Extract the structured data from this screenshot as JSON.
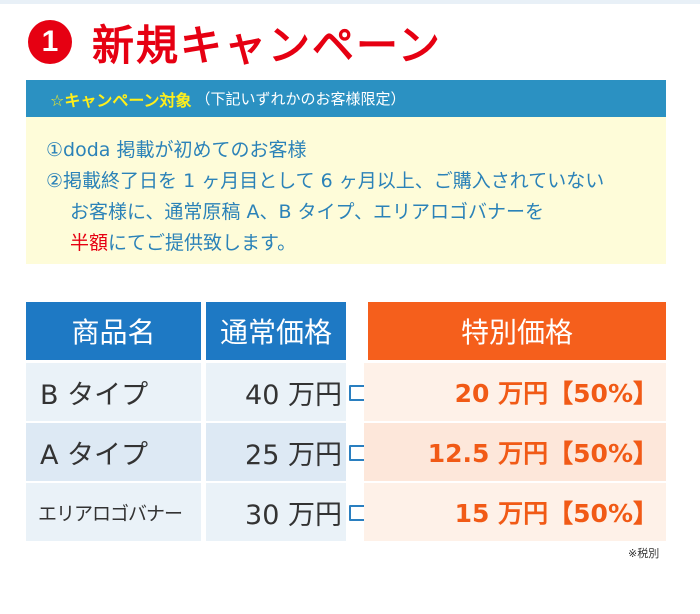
{
  "heading": {
    "number": "1",
    "title": "新規キャンペーン"
  },
  "campaign": {
    "header_label": "☆キャンペーン対象",
    "header_note": "（下記いずれかのお客様限定）",
    "condition_1": "①doda 掲載が初めてのお客様",
    "condition_2_line1": "②掲載終了日を 1 ヶ月目として 6 ヶ月以上、ご購入されていない",
    "condition_2_line2": "お客様に、通常原稿 A、B タイプ、エリアロゴバナーを",
    "condition_2_emphasis": "半額",
    "condition_2_rest": "にてご提供致します。",
    "colors": {
      "header_bg": "#2b91c2",
      "box_bg": "#fefcd9",
      "accent": "#e60012"
    }
  },
  "price_table": {
    "headers": {
      "product": "商品名",
      "normal": "通常価格",
      "special": "特別価格"
    },
    "rows": [
      {
        "product": "B タイプ",
        "normal": "40 万円",
        "special": "20 万円【50%】"
      },
      {
        "product": "A タイプ",
        "normal": "25 万円",
        "special": "12.5 万円【50%】"
      },
      {
        "product": "エリアロゴバナー",
        "normal": "30 万円",
        "special": "15 万円【50%】"
      }
    ],
    "colors": {
      "header_blue": "#1e79c4",
      "header_orange": "#f55f1c",
      "special_text": "#f15a16"
    }
  },
  "footnote": "※税別"
}
